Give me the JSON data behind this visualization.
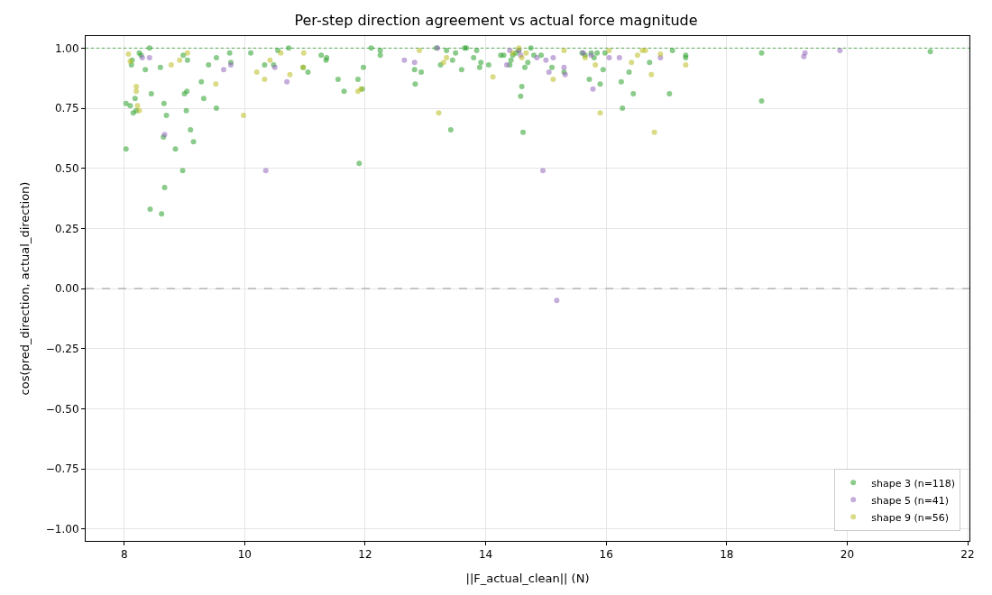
{
  "chart_data": {
    "type": "scatter",
    "title": "Per-step direction agreement vs actual force magnitude",
    "xlabel": "||F_actual_clean|| (N)",
    "ylabel": "cos(pred_direction, actual_direction)",
    "xlim": [
      7.36,
      22.03
    ],
    "ylim": [
      -1.05,
      1.05
    ],
    "xticks": [
      8,
      10,
      12,
      14,
      16,
      18,
      20,
      22
    ],
    "yticks": [
      {
        "value": -1,
        "label": "−1.00"
      },
      {
        "value": -0.75,
        "label": "−0.75"
      },
      {
        "value": -0.5,
        "label": "−0.50"
      },
      {
        "value": -0.25,
        "label": "−0.25"
      },
      {
        "value": 0,
        "label": "0.00"
      },
      {
        "value": 0.25,
        "label": "0.25"
      },
      {
        "value": 0.5,
        "label": "0.50"
      },
      {
        "value": 0.75,
        "label": "0.75"
      },
      {
        "value": 1,
        "label": "1.00"
      }
    ],
    "grid": true,
    "legend": "bottom right",
    "marker": "circle",
    "ref_lines": [
      {
        "axis": "y",
        "value": 1,
        "label": null,
        "color": "#2ca02c",
        "line_style": "dotted"
      },
      {
        "axis": "y",
        "value": 0,
        "label": null,
        "color": "#808080",
        "line_style": "dashed"
      }
    ],
    "series": [
      {
        "name": "shape 3 (n=118)",
        "color": "#2ca02c",
        "x": [
          8.03,
          8.03,
          8.1,
          8.12,
          8.13,
          8.15,
          8.18,
          8.2,
          8.25,
          8.28,
          8.35,
          8.42,
          8.45,
          8.43,
          8.6,
          8.62,
          8.65,
          8.66,
          8.67,
          8.7,
          8.85,
          8.97,
          8.98,
          9.0,
          9.03,
          9.04,
          9.05,
          9.1,
          9.15,
          9.28,
          9.32,
          9.4,
          9.53,
          9.53,
          9.75,
          9.77,
          10.1,
          10.33,
          10.48,
          10.55,
          10.73,
          10.97,
          11.05,
          11.27,
          11.35,
          11.36,
          11.55,
          11.65,
          11.88,
          11.9,
          11.95,
          11.97,
          12.1,
          12.25,
          12.25,
          12.82,
          12.83,
          12.93,
          13.18,
          13.25,
          13.35,
          13.42,
          13.45,
          13.5,
          13.6,
          13.65,
          13.68,
          13.8,
          13.85,
          13.9,
          13.92,
          14.05,
          14.25,
          14.3,
          14.4,
          14.42,
          14.45,
          14.5,
          14.55,
          14.58,
          14.6,
          14.62,
          14.65,
          14.7,
          14.75,
          14.8,
          14.92,
          15.1,
          15.3,
          15.6,
          15.65,
          15.72,
          15.75,
          15.8,
          15.85,
          15.9,
          15.95,
          15.98,
          16.25,
          16.27,
          16.38,
          16.45,
          16.72,
          17.05,
          17.1,
          17.32,
          17.32,
          18.58,
          18.58,
          21.38
        ],
        "values": [
          0.58,
          0.77,
          0.76,
          0.93,
          0.95,
          0.73,
          0.79,
          0.74,
          0.98,
          0.97,
          0.91,
          1.0,
          0.81,
          0.33,
          0.92,
          0.31,
          0.63,
          0.77,
          0.42,
          0.72,
          0.58,
          0.49,
          0.97,
          0.81,
          0.74,
          0.82,
          0.95,
          0.66,
          0.61,
          0.86,
          0.79,
          0.93,
          0.75,
          0.96,
          0.98,
          0.94,
          0.98,
          0.93,
          0.93,
          0.99,
          1.0,
          0.92,
          0.9,
          0.97,
          0.95,
          0.96,
          0.87,
          0.82,
          0.87,
          0.52,
          0.83,
          0.92,
          1.0,
          0.99,
          0.97,
          0.91,
          0.85,
          0.9,
          1.0,
          0.93,
          0.99,
          0.66,
          0.95,
          0.98,
          0.91,
          1.0,
          1.0,
          0.96,
          0.99,
          0.92,
          0.94,
          0.93,
          0.97,
          0.97,
          0.93,
          0.95,
          0.97,
          0.98,
          0.99,
          0.8,
          0.84,
          0.65,
          0.92,
          0.94,
          1.0,
          0.97,
          0.97,
          0.92,
          0.9,
          0.98,
          0.97,
          0.87,
          0.98,
          0.96,
          0.98,
          0.85,
          0.91,
          0.98,
          0.86,
          0.75,
          0.9,
          0.81,
          0.94,
          0.81,
          0.99,
          0.97,
          0.96,
          0.98,
          0.78,
          0.985
        ]
      },
      {
        "name": "shape 5 (n=41)",
        "color": "#9467bd",
        "x": [
          8.3,
          8.42,
          8.67,
          9.65,
          9.77,
          10.35,
          10.5,
          10.7,
          12.65,
          12.82,
          13.2,
          14.35,
          14.4,
          14.55,
          14.58,
          14.85,
          14.95,
          15.0,
          15.05,
          15.12,
          15.18,
          15.3,
          15.32,
          15.62,
          15.75,
          15.78,
          16.05,
          16.22,
          16.9,
          19.28,
          19.3,
          19.88
        ],
        "values": [
          0.96,
          0.96,
          0.64,
          0.91,
          0.93,
          0.49,
          0.92,
          0.86,
          0.95,
          0.94,
          1.0,
          0.93,
          0.99,
          0.99,
          0.97,
          0.96,
          0.49,
          0.95,
          0.9,
          0.96,
          -0.05,
          0.92,
          0.89,
          0.98,
          0.97,
          0.83,
          0.96,
          0.96,
          0.96,
          0.965,
          0.98,
          0.99
        ]
      },
      {
        "name": "shape 9 (n=56)",
        "color": "#bcbd22",
        "x": [
          8.07,
          8.1,
          8.2,
          8.2,
          8.22,
          8.25,
          8.78,
          8.92,
          9.05,
          9.52,
          9.98,
          10.2,
          10.33,
          10.42,
          10.6,
          10.75,
          10.97,
          10.98,
          11.88,
          11.93,
          12.9,
          13.22,
          13.3,
          13.35,
          14.12,
          14.45,
          14.55,
          14.6,
          14.67,
          15.12,
          15.3,
          15.65,
          15.82,
          15.9,
          16.05,
          16.42,
          16.52,
          16.6,
          16.65,
          16.75,
          16.8,
          16.9,
          17.32
        ],
        "values": [
          0.975,
          0.945,
          0.82,
          0.84,
          0.76,
          0.74,
          0.93,
          0.95,
          0.98,
          0.85,
          0.72,
          0.9,
          0.87,
          0.95,
          0.98,
          0.89,
          0.92,
          0.98,
          0.82,
          0.83,
          0.99,
          0.73,
          0.94,
          0.96,
          0.88,
          0.98,
          1.0,
          0.96,
          0.98,
          0.87,
          0.99,
          0.96,
          0.93,
          0.73,
          0.99,
          0.94,
          0.97,
          0.99,
          0.99,
          0.89,
          0.65,
          0.975,
          0.93
        ]
      }
    ]
  }
}
